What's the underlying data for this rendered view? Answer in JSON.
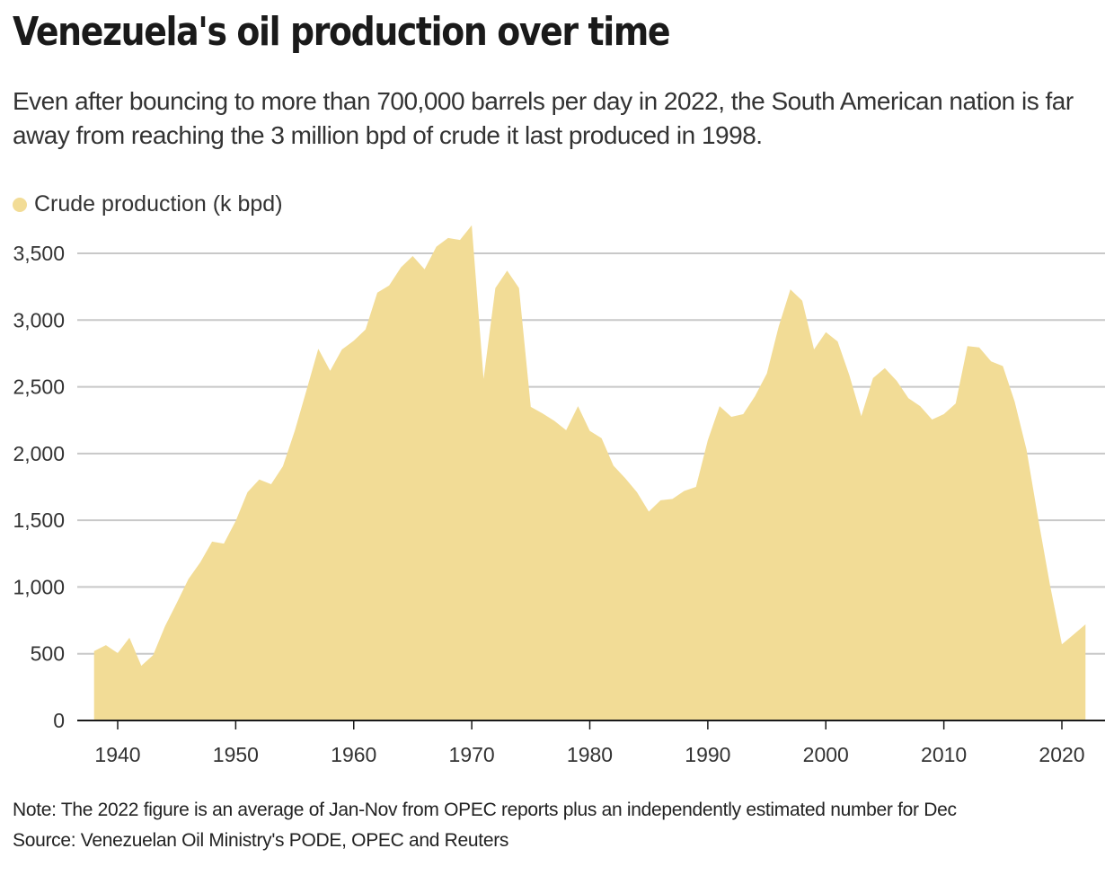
{
  "header": {
    "title": "Venezuela's oil production over time",
    "subtitle": "Even after bouncing to more than 700,000 barrels per day in 2022, the South American nation is far away from reaching the 3 million bpd of crude it last produced in 1998."
  },
  "footer": {
    "note": "Note: The 2022 figure is an average of Jan-Nov from OPEC reports plus an independently estimated number for Dec",
    "source": "Source: Venezuelan Oil Ministry's PODE, OPEC and Reuters"
  },
  "colors": {
    "area_fill": "#f2dc96",
    "gridline": "#c8c8c8",
    "axis": "#1a1a1a"
  },
  "chart_data": {
    "type": "area",
    "title": "Venezuela's oil production over time",
    "xlabel": "",
    "ylabel": "",
    "legend": {
      "position": "top-left",
      "entries": [
        "Crude production (k bpd)"
      ]
    },
    "grid": true,
    "xlim": [
      1938,
      2022
    ],
    "ylim": [
      0,
      3700
    ],
    "yticks": [
      0,
      500,
      1000,
      1500,
      2000,
      2500,
      3000,
      3500
    ],
    "ytick_labels": [
      "0",
      "500",
      "1,000",
      "1,500",
      "2,000",
      "2,500",
      "3,000",
      "3,500"
    ],
    "xticks": [
      1940,
      1950,
      1960,
      1970,
      1980,
      1990,
      2000,
      2010,
      2020
    ],
    "xtick_labels": [
      "1940",
      "1950",
      "1960",
      "1970",
      "1980",
      "1990",
      "2000",
      "2010",
      "2020"
    ],
    "series": [
      {
        "name": "Crude production (k bpd)",
        "x": [
          1938,
          1939,
          1940,
          1941,
          1942,
          1943,
          1944,
          1945,
          1946,
          1947,
          1948,
          1949,
          1950,
          1951,
          1952,
          1953,
          1954,
          1955,
          1956,
          1957,
          1958,
          1959,
          1960,
          1961,
          1962,
          1963,
          1964,
          1965,
          1966,
          1967,
          1968,
          1969,
          1970,
          1971,
          1972,
          1973,
          1974,
          1975,
          1976,
          1977,
          1978,
          1979,
          1980,
          1981,
          1982,
          1983,
          1984,
          1985,
          1986,
          1987,
          1988,
          1989,
          1990,
          1991,
          1992,
          1993,
          1994,
          1995,
          1996,
          1997,
          1998,
          1999,
          2000,
          2001,
          2002,
          2003,
          2004,
          2005,
          2006,
          2007,
          2008,
          2009,
          2010,
          2011,
          2012,
          2013,
          2014,
          2015,
          2016,
          2017,
          2018,
          2019,
          2020,
          2021,
          2022
        ],
        "values": [
          520,
          565,
          505,
          620,
          410,
          490,
          705,
          880,
          1060,
          1185,
          1340,
          1325,
          1495,
          1710,
          1805,
          1770,
          1905,
          2170,
          2475,
          2785,
          2620,
          2780,
          2845,
          2930,
          3205,
          3260,
          3395,
          3480,
          3380,
          3550,
          3615,
          3600,
          3710,
          2560,
          3240,
          3370,
          3240,
          2350,
          2300,
          2245,
          2175,
          2355,
          2170,
          2115,
          1910,
          1815,
          1710,
          1565,
          1650,
          1660,
          1720,
          1750,
          2100,
          2355,
          2275,
          2295,
          2430,
          2600,
          2950,
          3230,
          3145,
          2780,
          2910,
          2840,
          2585,
          2280,
          2565,
          2640,
          2545,
          2415,
          2355,
          2255,
          2295,
          2375,
          2805,
          2795,
          2690,
          2655,
          2390,
          2030,
          1510,
          1010,
          570,
          645,
          720
        ]
      }
    ]
  }
}
